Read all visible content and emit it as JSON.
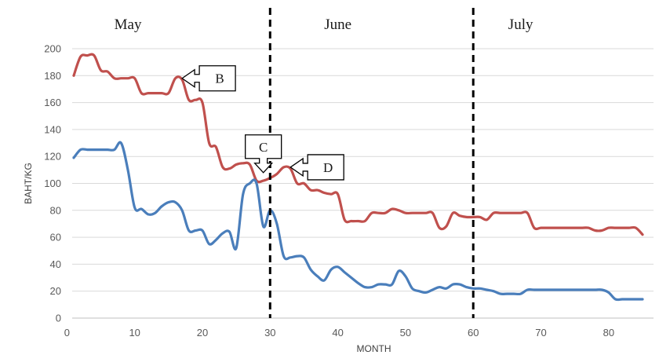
{
  "chart_data": {
    "type": "line",
    "xlabel": "MONTH",
    "ylabel": "BAHT/KG",
    "xlim": [
      0,
      86
    ],
    "ylim": [
      0,
      200
    ],
    "x_ticks": [
      0,
      10,
      20,
      30,
      40,
      50,
      60,
      70,
      80
    ],
    "y_ticks": [
      0,
      20,
      40,
      60,
      80,
      100,
      120,
      140,
      160,
      180,
      200
    ],
    "grid": "horizontal",
    "legend": "none",
    "period_labels": [
      {
        "label": "May",
        "x": 9
      },
      {
        "label": "June",
        "x": 40
      },
      {
        "label": "July",
        "x": 67
      }
    ],
    "dividers_x": [
      30,
      60
    ],
    "series": [
      {
        "color": "#c0504d",
        "points": [
          [
            1,
            180
          ],
          [
            2,
            194
          ],
          [
            3,
            195
          ],
          [
            4,
            195
          ],
          [
            5,
            184
          ],
          [
            6,
            183
          ],
          [
            7,
            178
          ],
          [
            8,
            178
          ],
          [
            9,
            178
          ],
          [
            10,
            178
          ],
          [
            11,
            167
          ],
          [
            12,
            167
          ],
          [
            13,
            167
          ],
          [
            14,
            167
          ],
          [
            15,
            167
          ],
          [
            16,
            178
          ],
          [
            17,
            177
          ],
          [
            18,
            162
          ],
          [
            19,
            162
          ],
          [
            20,
            160
          ],
          [
            21,
            130
          ],
          [
            22,
            127
          ],
          [
            23,
            112
          ],
          [
            24,
            111
          ],
          [
            25,
            114
          ],
          [
            26,
            115
          ],
          [
            27,
            114
          ],
          [
            28,
            102
          ],
          [
            29,
            102
          ],
          [
            30,
            104
          ],
          [
            31,
            107
          ],
          [
            32,
            112
          ],
          [
            33,
            111
          ],
          [
            34,
            100
          ],
          [
            35,
            100
          ],
          [
            36,
            95
          ],
          [
            37,
            95
          ],
          [
            38,
            93
          ],
          [
            39,
            92
          ],
          [
            40,
            92
          ],
          [
            41,
            73
          ],
          [
            42,
            72
          ],
          [
            43,
            72
          ],
          [
            44,
            72
          ],
          [
            45,
            78
          ],
          [
            46,
            78
          ],
          [
            47,
            78
          ],
          [
            48,
            81
          ],
          [
            49,
            80
          ],
          [
            50,
            78
          ],
          [
            51,
            78
          ],
          [
            52,
            78
          ],
          [
            53,
            78
          ],
          [
            54,
            78
          ],
          [
            55,
            67
          ],
          [
            56,
            68
          ],
          [
            57,
            78
          ],
          [
            58,
            76
          ],
          [
            59,
            75
          ],
          [
            60,
            75
          ],
          [
            61,
            75
          ],
          [
            62,
            73
          ],
          [
            63,
            78
          ],
          [
            64,
            78
          ],
          [
            65,
            78
          ],
          [
            66,
            78
          ],
          [
            67,
            78
          ],
          [
            68,
            78
          ],
          [
            69,
            67
          ],
          [
            70,
            67
          ],
          [
            71,
            67
          ],
          [
            72,
            67
          ],
          [
            73,
            67
          ],
          [
            74,
            67
          ],
          [
            75,
            67
          ],
          [
            76,
            67
          ],
          [
            77,
            67
          ],
          [
            78,
            65
          ],
          [
            79,
            65
          ],
          [
            80,
            67
          ],
          [
            81,
            67
          ],
          [
            82,
            67
          ],
          [
            83,
            67
          ],
          [
            84,
            67
          ],
          [
            85,
            62
          ]
        ]
      },
      {
        "color": "#4a7ebb",
        "points": [
          [
            1,
            119
          ],
          [
            2,
            125
          ],
          [
            3,
            125
          ],
          [
            4,
            125
          ],
          [
            5,
            125
          ],
          [
            6,
            125
          ],
          [
            7,
            125
          ],
          [
            8,
            130
          ],
          [
            9,
            110
          ],
          [
            10,
            82
          ],
          [
            11,
            81
          ],
          [
            12,
            77
          ],
          [
            13,
            78
          ],
          [
            14,
            83
          ],
          [
            15,
            86
          ],
          [
            16,
            86
          ],
          [
            17,
            80
          ],
          [
            18,
            65
          ],
          [
            19,
            65
          ],
          [
            20,
            65
          ],
          [
            21,
            55
          ],
          [
            22,
            58
          ],
          [
            23,
            63
          ],
          [
            24,
            64
          ],
          [
            25,
            52
          ],
          [
            26,
            92
          ],
          [
            27,
            100
          ],
          [
            28,
            100
          ],
          [
            29,
            68
          ],
          [
            30,
            80
          ],
          [
            31,
            70
          ],
          [
            32,
            46
          ],
          [
            33,
            45
          ],
          [
            34,
            46
          ],
          [
            35,
            45
          ],
          [
            36,
            36
          ],
          [
            37,
            31
          ],
          [
            38,
            28
          ],
          [
            39,
            36
          ],
          [
            40,
            38
          ],
          [
            41,
            34
          ],
          [
            42,
            30
          ],
          [
            43,
            26
          ],
          [
            44,
            23
          ],
          [
            45,
            23
          ],
          [
            46,
            25
          ],
          [
            47,
            25
          ],
          [
            48,
            25
          ],
          [
            49,
            35
          ],
          [
            50,
            31
          ],
          [
            51,
            22
          ],
          [
            52,
            20
          ],
          [
            53,
            19
          ],
          [
            54,
            21
          ],
          [
            55,
            23
          ],
          [
            56,
            22
          ],
          [
            57,
            25
          ],
          [
            58,
            25
          ],
          [
            59,
            23
          ],
          [
            60,
            22
          ],
          [
            61,
            22
          ],
          [
            62,
            21
          ],
          [
            63,
            20
          ],
          [
            64,
            18
          ],
          [
            65,
            18
          ],
          [
            66,
            18
          ],
          [
            67,
            18
          ],
          [
            68,
            21
          ],
          [
            69,
            21
          ],
          [
            70,
            21
          ],
          [
            71,
            21
          ],
          [
            72,
            21
          ],
          [
            73,
            21
          ],
          [
            74,
            21
          ],
          [
            75,
            21
          ],
          [
            76,
            21
          ],
          [
            77,
            21
          ],
          [
            78,
            21
          ],
          [
            79,
            21
          ],
          [
            80,
            19
          ],
          [
            81,
            14
          ],
          [
            82,
            14
          ],
          [
            83,
            14
          ],
          [
            84,
            14
          ],
          [
            85,
            14
          ]
        ]
      }
    ],
    "callouts": [
      {
        "label": "B",
        "target": [
          17,
          178
        ],
        "direction": "left"
      },
      {
        "label": "C",
        "target": [
          29,
          108
        ],
        "direction": "down"
      },
      {
        "label": "D",
        "target": [
          33,
          112
        ],
        "direction": "left"
      }
    ]
  }
}
